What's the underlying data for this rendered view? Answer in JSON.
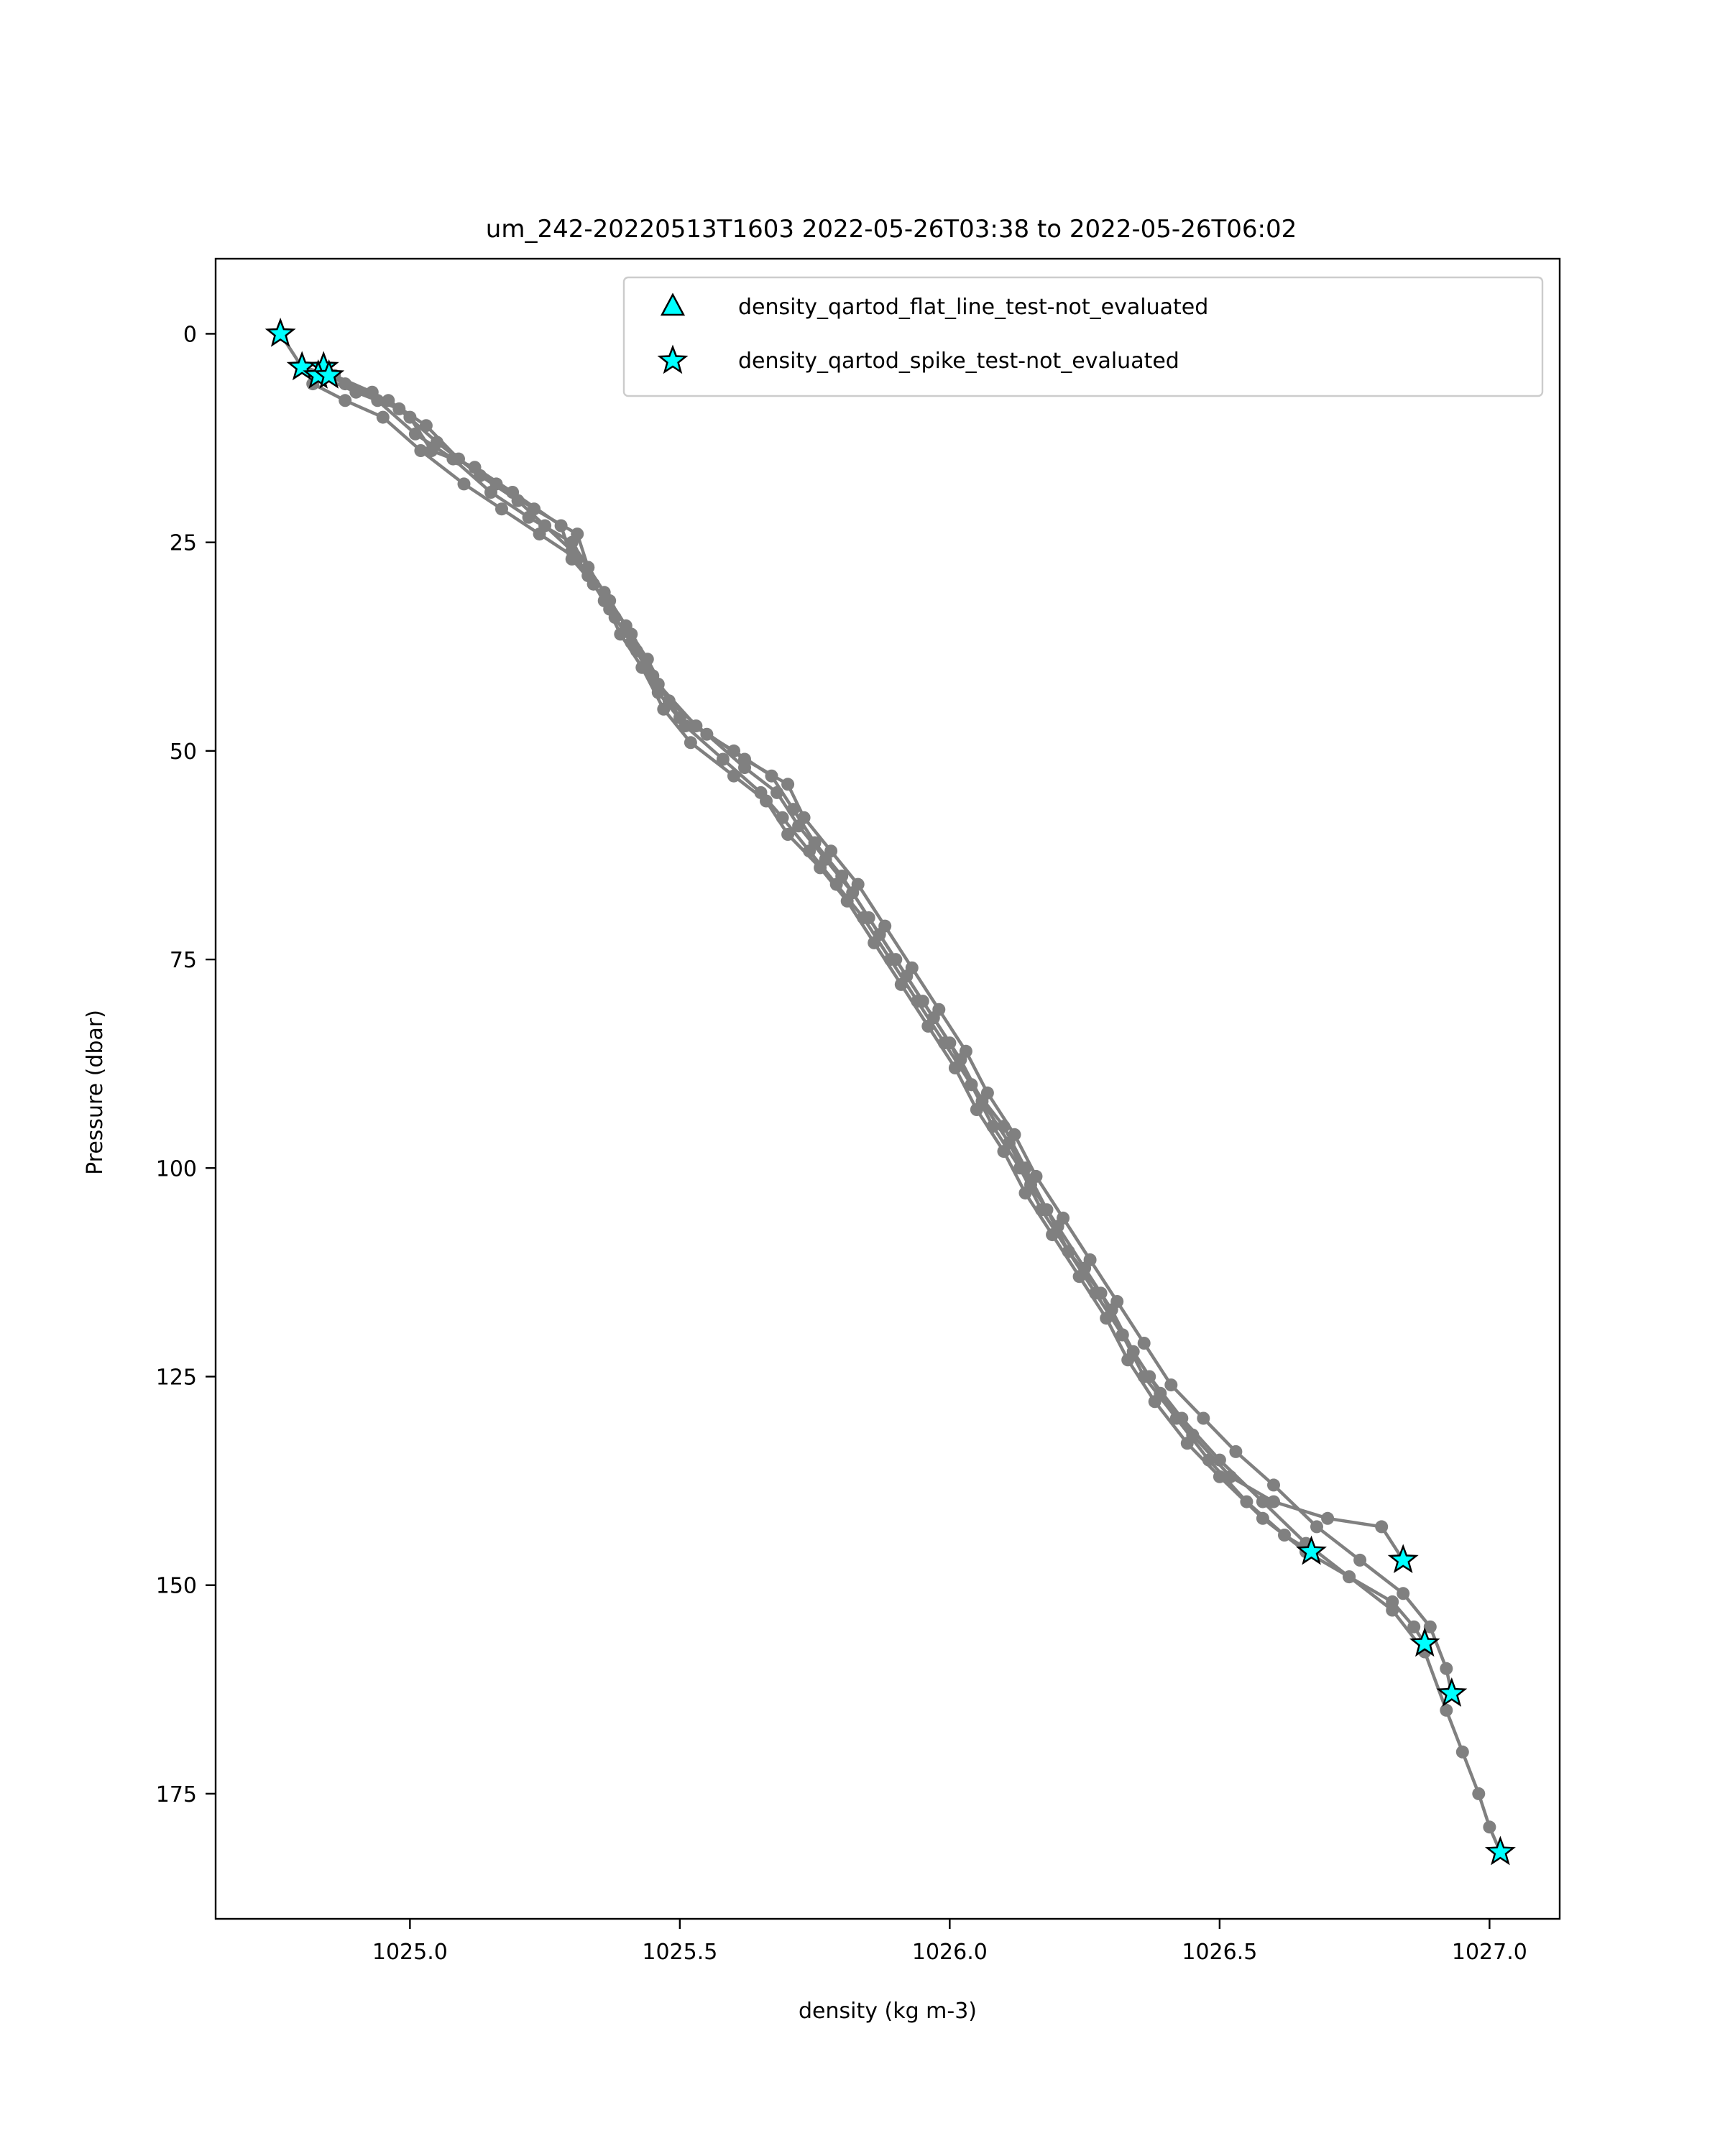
{
  "chart_data": {
    "type": "line",
    "title": "um_242-20220513T1603 2022-05-26T03:38 to 2022-05-26T06:02",
    "xlabel": "density (kg m-3)",
    "ylabel": "Pressure (dbar)",
    "xlim": [
      1024.64,
      1027.13
    ],
    "ylim": [
      190,
      -9
    ],
    "y_inverted": true,
    "grid": false,
    "xticks": [
      1025.0,
      1025.5,
      1026.0,
      1026.5,
      1027.0
    ],
    "xtick_labels": [
      "1025.0",
      "1025.5",
      "1026.0",
      "1026.5",
      "1027.0"
    ],
    "yticks": [
      0,
      25,
      50,
      75,
      100,
      125,
      150,
      175
    ],
    "ytick_labels": [
      "0",
      "25",
      "50",
      "75",
      "100",
      "125",
      "150",
      "175"
    ],
    "line_color": "#808080",
    "marker_color": "#00ffff",
    "legend": {
      "placement": "upper right",
      "entries": [
        {
          "label": "density_qartod_flat_line_test-not_evaluated",
          "marker": "triangle",
          "color": "#00ffff"
        },
        {
          "label": "density_qartod_spike_test-not_evaluated",
          "marker": "star",
          "color": "#00ffff"
        }
      ]
    },
    "series": [
      {
        "points": [
          [
            1024.76,
            0
          ],
          [
            1024.8,
            4
          ],
          [
            1024.86,
            5
          ],
          [
            1024.93,
            7
          ],
          [
            1025.0,
            10
          ],
          [
            1025.04,
            14
          ],
          [
            1025.12,
            16
          ],
          [
            1025.19,
            19
          ],
          [
            1025.28,
            23
          ],
          [
            1025.3,
            27
          ],
          [
            1025.34,
            30
          ],
          [
            1025.37,
            33
          ],
          [
            1025.41,
            37
          ],
          [
            1025.45,
            41
          ],
          [
            1025.5,
            46
          ],
          [
            1025.6,
            50
          ],
          [
            1025.67,
            53
          ],
          [
            1025.71,
            57
          ],
          [
            1025.75,
            61
          ],
          [
            1025.8,
            65
          ],
          [
            1025.85,
            70
          ],
          [
            1025.9,
            75
          ],
          [
            1025.95,
            80
          ],
          [
            1026.0,
            85
          ],
          [
            1026.04,
            90
          ],
          [
            1026.1,
            95
          ],
          [
            1026.14,
            100
          ],
          [
            1026.18,
            105
          ],
          [
            1026.22,
            110
          ],
          [
            1026.28,
            115
          ],
          [
            1026.32,
            120
          ],
          [
            1026.36,
            125
          ],
          [
            1026.42,
            130
          ],
          [
            1026.48,
            135
          ],
          [
            1026.55,
            140
          ],
          [
            1026.62,
            144
          ],
          [
            1026.67,
            146
          ]
        ]
      },
      {
        "points": [
          [
            1024.84,
            4
          ],
          [
            1024.88,
            6
          ],
          [
            1024.96,
            8
          ],
          [
            1025.03,
            11
          ],
          [
            1025.09,
            15
          ],
          [
            1025.16,
            18
          ],
          [
            1025.23,
            21
          ],
          [
            1025.31,
            24
          ],
          [
            1025.33,
            28
          ],
          [
            1025.36,
            31
          ],
          [
            1025.4,
            35
          ],
          [
            1025.44,
            39
          ],
          [
            1025.48,
            44
          ],
          [
            1025.55,
            48
          ],
          [
            1025.62,
            52
          ],
          [
            1025.68,
            55
          ],
          [
            1025.72,
            59
          ],
          [
            1025.77,
            63
          ],
          [
            1025.82,
            67
          ],
          [
            1025.87,
            72
          ],
          [
            1025.92,
            77
          ],
          [
            1025.97,
            82
          ],
          [
            1026.02,
            87
          ],
          [
            1026.06,
            92
          ],
          [
            1026.11,
            97
          ],
          [
            1026.15,
            102
          ],
          [
            1026.2,
            107
          ],
          [
            1026.25,
            112
          ],
          [
            1026.3,
            117
          ],
          [
            1026.34,
            122
          ],
          [
            1026.39,
            127
          ],
          [
            1026.45,
            132
          ],
          [
            1026.52,
            137
          ],
          [
            1026.6,
            140
          ],
          [
            1026.7,
            142
          ],
          [
            1026.8,
            143
          ],
          [
            1026.84,
            147
          ]
        ]
      },
      {
        "points": [
          [
            1024.83,
            5
          ],
          [
            1024.9,
            7
          ],
          [
            1024.98,
            9
          ],
          [
            1025.05,
            13
          ],
          [
            1025.13,
            17
          ],
          [
            1025.2,
            20
          ],
          [
            1025.25,
            23
          ],
          [
            1025.3,
            26
          ],
          [
            1025.33,
            29
          ],
          [
            1025.36,
            32
          ],
          [
            1025.39,
            36
          ],
          [
            1025.43,
            40
          ],
          [
            1025.47,
            45
          ],
          [
            1025.52,
            49
          ],
          [
            1025.6,
            53
          ],
          [
            1025.66,
            56
          ],
          [
            1025.7,
            60
          ],
          [
            1025.76,
            64
          ],
          [
            1025.81,
            68
          ],
          [
            1025.86,
            73
          ],
          [
            1025.91,
            78
          ],
          [
            1025.96,
            83
          ],
          [
            1026.01,
            88
          ],
          [
            1026.05,
            93
          ],
          [
            1026.1,
            98
          ],
          [
            1026.14,
            103
          ],
          [
            1026.19,
            108
          ],
          [
            1026.24,
            113
          ],
          [
            1026.29,
            118
          ],
          [
            1026.33,
            123
          ],
          [
            1026.38,
            128
          ],
          [
            1026.44,
            133
          ],
          [
            1026.5,
            137
          ],
          [
            1026.58,
            142
          ],
          [
            1026.66,
            146
          ],
          [
            1026.74,
            149
          ],
          [
            1026.82,
            152
          ],
          [
            1026.86,
            155
          ],
          [
            1026.88,
            157
          ]
        ]
      },
      {
        "points": [
          [
            1024.85,
            5
          ],
          [
            1024.94,
            8
          ],
          [
            1025.01,
            12
          ],
          [
            1025.08,
            15
          ],
          [
            1025.15,
            19
          ],
          [
            1025.22,
            22
          ],
          [
            1025.3,
            25
          ],
          [
            1025.33,
            28
          ],
          [
            1025.37,
            32
          ],
          [
            1025.41,
            36
          ],
          [
            1025.46,
            42
          ],
          [
            1025.53,
            47
          ],
          [
            1025.62,
            51
          ],
          [
            1025.7,
            54
          ],
          [
            1025.73,
            58
          ],
          [
            1025.78,
            62
          ],
          [
            1025.83,
            66
          ],
          [
            1025.88,
            71
          ],
          [
            1025.93,
            76
          ],
          [
            1025.98,
            81
          ],
          [
            1026.03,
            86
          ],
          [
            1026.07,
            91
          ],
          [
            1026.12,
            96
          ],
          [
            1026.16,
            101
          ],
          [
            1026.21,
            106
          ],
          [
            1026.26,
            111
          ],
          [
            1026.31,
            116
          ],
          [
            1026.36,
            121
          ],
          [
            1026.41,
            126
          ],
          [
            1026.47,
            130
          ],
          [
            1026.53,
            134
          ],
          [
            1026.6,
            138
          ],
          [
            1026.68,
            143
          ],
          [
            1026.76,
            147
          ],
          [
            1026.84,
            151
          ],
          [
            1026.89,
            155
          ],
          [
            1026.92,
            160
          ],
          [
            1026.93,
            163
          ]
        ]
      },
      {
        "points": [
          [
            1024.82,
            6
          ],
          [
            1024.88,
            8
          ],
          [
            1024.95,
            10
          ],
          [
            1025.02,
            14
          ],
          [
            1025.1,
            18
          ],
          [
            1025.17,
            21
          ],
          [
            1025.24,
            24
          ],
          [
            1025.31,
            27
          ],
          [
            1025.34,
            30
          ],
          [
            1025.38,
            34
          ],
          [
            1025.42,
            38
          ],
          [
            1025.46,
            43
          ],
          [
            1025.51,
            47
          ],
          [
            1025.58,
            51
          ],
          [
            1025.65,
            55
          ],
          [
            1025.69,
            58
          ],
          [
            1025.74,
            62
          ],
          [
            1025.79,
            66
          ],
          [
            1025.84,
            70
          ],
          [
            1025.89,
            75
          ],
          [
            1025.94,
            80
          ],
          [
            1025.99,
            85
          ],
          [
            1026.04,
            90
          ],
          [
            1026.08,
            95
          ],
          [
            1026.13,
            100
          ],
          [
            1026.17,
            105
          ],
          [
            1026.22,
            110
          ],
          [
            1026.27,
            115
          ],
          [
            1026.32,
            120
          ],
          [
            1026.37,
            125
          ],
          [
            1026.43,
            130
          ],
          [
            1026.5,
            135
          ],
          [
            1026.58,
            140
          ],
          [
            1026.66,
            145
          ],
          [
            1026.74,
            149
          ],
          [
            1026.82,
            153
          ],
          [
            1026.88,
            158
          ],
          [
            1026.92,
            165
          ],
          [
            1026.95,
            170
          ],
          [
            1026.98,
            175
          ],
          [
            1027.0,
            179
          ],
          [
            1027.02,
            182
          ]
        ]
      }
    ],
    "flagged_points": [
      {
        "test": "density_qartod_spike_test-not_evaluated",
        "points": [
          [
            1024.76,
            0
          ],
          [
            1024.8,
            4
          ],
          [
            1024.84,
            4
          ],
          [
            1024.83,
            5
          ],
          [
            1024.85,
            5
          ],
          [
            1026.67,
            146
          ],
          [
            1026.84,
            147
          ],
          [
            1026.88,
            157
          ],
          [
            1026.93,
            163
          ],
          [
            1027.02,
            182
          ]
        ]
      }
    ]
  }
}
